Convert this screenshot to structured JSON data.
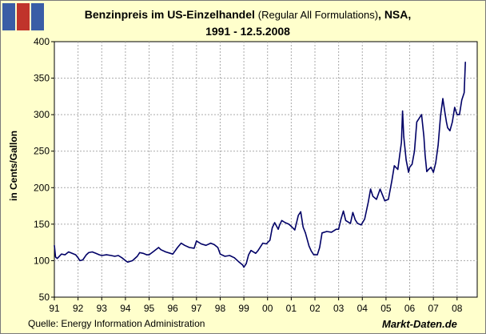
{
  "logo": {
    "name": "chart-logo-icon",
    "colors": [
      "#3a5da6",
      "#c0342b",
      "#3a5da6"
    ]
  },
  "header": {
    "title_main": "Benzinpreis im US-Einzelhandel",
    "title_paren": "(Regular All Formulations)",
    "title_tail": ", NSA,",
    "title_dates": "1991 - 12.5.2008"
  },
  "footer": {
    "source": "Quelle: Energy Information Administration",
    "brand": "Markt-Daten.de"
  },
  "colors": {
    "background": "#ffffcc",
    "plot_background": "#ffffff",
    "line": "#000066",
    "grid": "#aaaaaa"
  },
  "chart_data": {
    "type": "line",
    "title": "Benzinpreis im US-Einzelhandel (Regular All Formulations), NSA, 1991 - 12.5.2008",
    "xlabel": "",
    "ylabel": "in Cents/Gallon",
    "ylim": [
      50,
      400
    ],
    "yticks": [
      50,
      100,
      150,
      200,
      250,
      300,
      350,
      400
    ],
    "xlim": [
      1991,
      2008.85
    ],
    "xticks": [
      {
        "x": 1991,
        "label": "91"
      },
      {
        "x": 1992,
        "label": "92"
      },
      {
        "x": 1993,
        "label": "93"
      },
      {
        "x": 1994,
        "label": "94"
      },
      {
        "x": 1995,
        "label": "95"
      },
      {
        "x": 1996,
        "label": "96"
      },
      {
        "x": 1997,
        "label": "97"
      },
      {
        "x": 1998,
        "label": "98"
      },
      {
        "x": 1999,
        "label": "99"
      },
      {
        "x": 2000,
        "label": "00"
      },
      {
        "x": 2001,
        "label": "01"
      },
      {
        "x": 2002,
        "label": "02"
      },
      {
        "x": 2003,
        "label": "03"
      },
      {
        "x": 2004,
        "label": "04"
      },
      {
        "x": 2005,
        "label": "05"
      },
      {
        "x": 2006,
        "label": "06"
      },
      {
        "x": 2007,
        "label": "07"
      },
      {
        "x": 2008,
        "label": "08"
      }
    ],
    "grid": true,
    "series": [
      {
        "name": "Benzinpreis",
        "x": [
          1991.0,
          1991.05,
          1991.12,
          1991.3,
          1991.45,
          1991.6,
          1991.75,
          1991.9,
          1992.0,
          1992.08,
          1992.2,
          1992.35,
          1992.45,
          1992.6,
          1992.75,
          1992.9,
          1993.0,
          1993.2,
          1993.4,
          1993.55,
          1993.7,
          1993.85,
          1994.0,
          1994.1,
          1994.3,
          1994.5,
          1994.6,
          1994.75,
          1994.9,
          1995.0,
          1995.2,
          1995.4,
          1995.5,
          1995.7,
          1995.9,
          1996.0,
          1996.2,
          1996.35,
          1996.5,
          1996.7,
          1996.9,
          1997.0,
          1997.2,
          1997.4,
          1997.6,
          1997.75,
          1997.9,
          1998.0,
          1998.2,
          1998.4,
          1998.6,
          1998.8,
          1998.95,
          1999.0,
          1999.1,
          1999.2,
          1999.3,
          1999.5,
          1999.6,
          1999.8,
          1999.95,
          2000.1,
          2000.2,
          2000.3,
          2000.45,
          2000.5,
          2000.6,
          2000.75,
          2000.9,
          2001.0,
          2001.15,
          2001.3,
          2001.4,
          2001.5,
          2001.6,
          2001.75,
          2001.85,
          2001.95,
          2002.1,
          2002.2,
          2002.3,
          2002.5,
          2002.7,
          2002.9,
          2003.0,
          2003.1,
          2003.2,
          2003.3,
          2003.5,
          2003.6,
          2003.7,
          2003.8,
          2003.95,
          2004.1,
          2004.25,
          2004.35,
          2004.45,
          2004.6,
          2004.75,
          2004.85,
          2004.95,
          2005.1,
          2005.25,
          2005.35,
          2005.5,
          2005.6,
          2005.65,
          2005.7,
          2005.75,
          2005.8,
          2005.85,
          2005.95,
          2006.0,
          2006.1,
          2006.2,
          2006.3,
          2006.4,
          2006.5,
          2006.6,
          2006.65,
          2006.72,
          2006.8,
          2006.9,
          2007.0,
          2007.1,
          2007.2,
          2007.3,
          2007.4,
          2007.5,
          2007.55,
          2007.6,
          2007.7,
          2007.8,
          2007.9,
          2008.0,
          2008.1,
          2008.2,
          2008.3,
          2008.35
        ],
        "values": [
          121,
          105,
          103,
          109,
          108,
          112,
          110,
          108,
          104,
          100,
          101,
          108,
          111,
          112,
          110,
          108,
          107,
          108,
          107,
          106,
          107,
          104,
          100,
          98,
          100,
          106,
          111,
          110,
          108,
          108,
          113,
          118,
          115,
          112,
          110,
          109,
          118,
          124,
          121,
          118,
          117,
          127,
          123,
          121,
          124,
          122,
          118,
          109,
          106,
          107,
          104,
          98,
          94,
          91,
          96,
          108,
          114,
          110,
          114,
          124,
          123,
          128,
          145,
          152,
          143,
          148,
          155,
          152,
          150,
          147,
          142,
          162,
          167,
          146,
          138,
          120,
          113,
          108,
          108,
          118,
          138,
          140,
          139,
          143,
          143,
          157,
          168,
          155,
          151,
          166,
          156,
          151,
          149,
          157,
          180,
          198,
          188,
          184,
          198,
          190,
          182,
          184,
          210,
          230,
          225,
          250,
          262,
          305,
          270,
          254,
          238,
          221,
          228,
          232,
          250,
          290,
          295,
          300,
          270,
          245,
          222,
          225,
          228,
          221,
          234,
          258,
          298,
          322,
          300,
          290,
          282,
          278,
          290,
          310,
          300,
          300,
          320,
          330,
          372
        ]
      }
    ]
  },
  "axis": {
    "ylabel": "in Cents/Gallon"
  }
}
